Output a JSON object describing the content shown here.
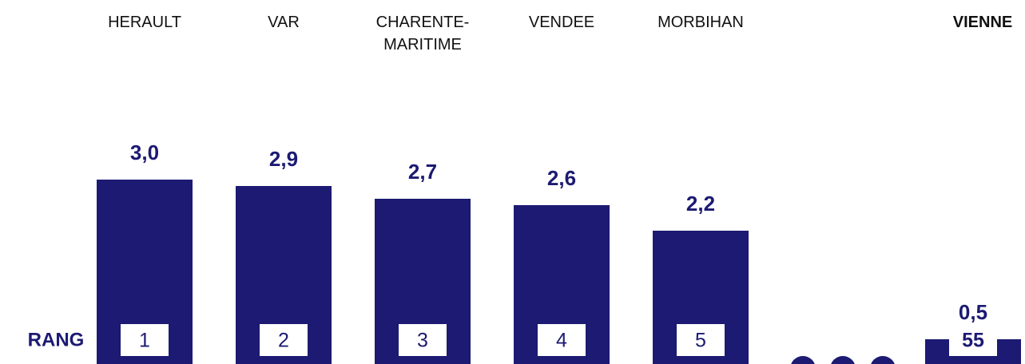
{
  "chart_data": {
    "type": "bar",
    "categories": [
      "HERAULT",
      "VAR",
      "CHARENTE-MARITIME",
      "VENDEE",
      "MORBIHAN",
      "VIENNE"
    ],
    "values": [
      3.0,
      2.9,
      2.7,
      2.6,
      2.2,
      0.5
    ],
    "value_labels": [
      "3,0",
      "2,9",
      "2,7",
      "2,6",
      "2,2",
      "0,5"
    ],
    "color": "#1c1a72",
    "rank_label": "RANG",
    "ranks": [
      1,
      2,
      3,
      4,
      5,
      55
    ]
  }
}
